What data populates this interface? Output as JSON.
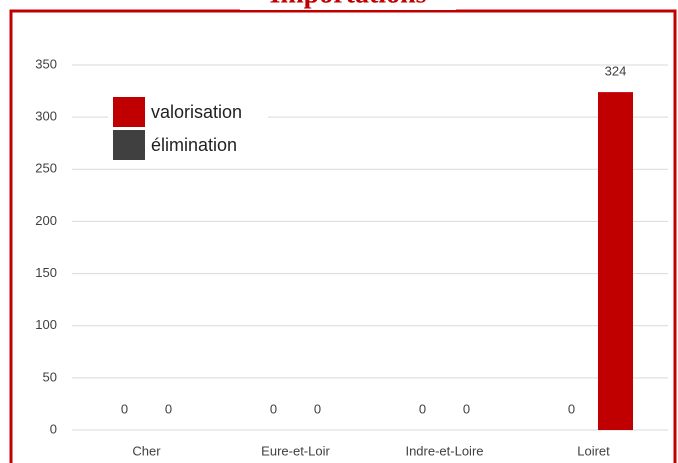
{
  "chart_data": {
    "type": "bar",
    "title": "Importations",
    "categories": [
      "Cher",
      "Eure-et-Loir",
      "Indre-et-Loire",
      "Loiret"
    ],
    "series": [
      {
        "name": "valorisation",
        "color": "#c00000",
        "values": [
          0,
          0,
          0,
          324
        ]
      },
      {
        "name": "élimination",
        "color": "#404040",
        "values": [
          0,
          0,
          0,
          0
        ]
      }
    ],
    "ylim": [
      0,
      350
    ],
    "yticks": [
      0,
      50,
      100,
      150,
      200,
      250,
      300,
      350
    ],
    "grid": true,
    "legend": "upper left"
  }
}
